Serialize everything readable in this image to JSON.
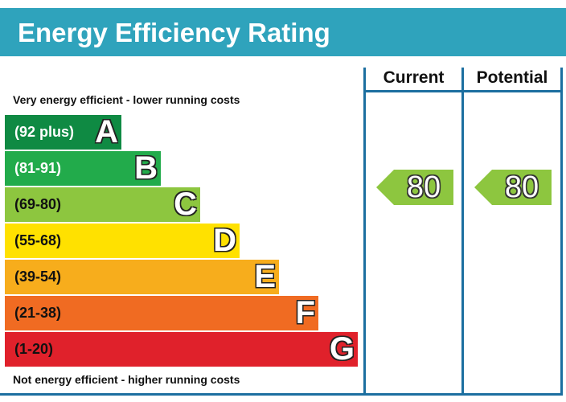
{
  "title": "Energy Efficiency Rating",
  "columns": {
    "current": "Current",
    "potential": "Potential"
  },
  "notes": {
    "top": "Very energy efficient - lower running costs",
    "bottom": "Not energy efficient - higher running costs"
  },
  "chart_data": {
    "type": "bar",
    "title": "Energy Efficiency Rating",
    "bands": [
      {
        "letter": "A",
        "range": "(92 plus)",
        "color": "#0f8a43",
        "text_color": "#ffffff"
      },
      {
        "letter": "B",
        "range": "(81-91)",
        "color": "#22ab4b",
        "text_color": "#ffffff"
      },
      {
        "letter": "C",
        "range": "(69-80)",
        "color": "#8dc63f",
        "text_color": "#111111"
      },
      {
        "letter": "D",
        "range": "(55-68)",
        "color": "#ffe100",
        "text_color": "#111111"
      },
      {
        "letter": "E",
        "range": "(39-54)",
        "color": "#f7ad1c",
        "text_color": "#111111"
      },
      {
        "letter": "F",
        "range": "(21-38)",
        "color": "#f06b22",
        "text_color": "#111111"
      },
      {
        "letter": "G",
        "range": "(1-20)",
        "color": "#e0212b",
        "text_color": "#111111"
      }
    ],
    "current": {
      "value": "80",
      "band": "C",
      "color": "#8dc63f"
    },
    "potential": {
      "value": "80",
      "band": "C",
      "color": "#8dc63f"
    }
  }
}
